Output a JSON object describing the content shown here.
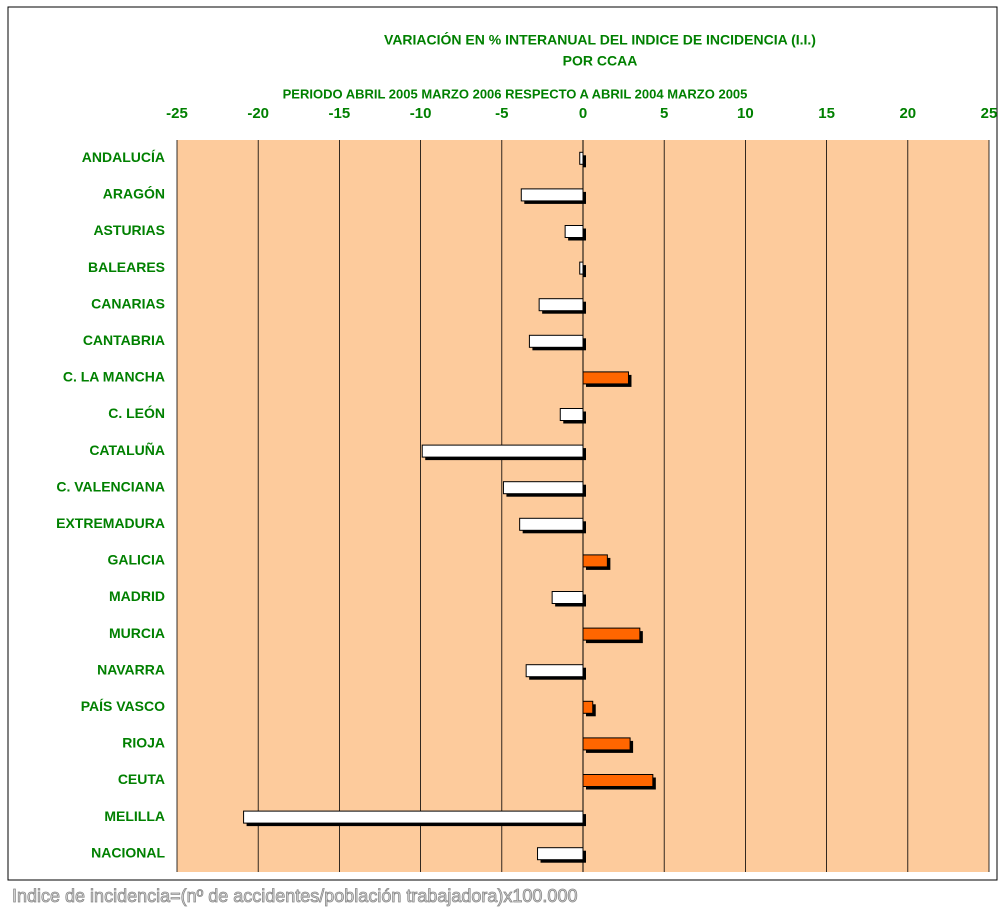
{
  "chart_data": {
    "type": "bar",
    "orientation": "horizontal",
    "title": [
      "VARIACIÓN  EN % INTERANUAL DEL INDICE DE INCIDENCIA  (I.I.)",
      "POR CCAA"
    ],
    "subtitle": "PERIODO ABRIL 2005 MARZO 2006  RESPECTO A ABRIL 2004 MARZO 2005",
    "footnote": "Indice de incidencia=(nº de accidentes/población trabajadora)x100.000",
    "categories": [
      "ANDALUCÍA",
      "ARAGÓN",
      "ASTURIAS",
      "BALEARES",
      "CANARIAS",
      "CANTABRIA",
      "C. LA MANCHA",
      "C. LEÓN",
      "CATALUÑA",
      "C. VALENCIANA",
      "EXTREMADURA",
      "GALICIA",
      "MADRID",
      "MURCIA",
      "NAVARRA",
      "PAÍS VASCO",
      "RIOJA",
      "CEUTA",
      "MELILLA",
      "NACIONAL"
    ],
    "values": [
      -0.2,
      -3.8,
      -1.1,
      -0.2,
      -2.7,
      -3.3,
      2.8,
      -1.4,
      -9.9,
      -4.9,
      -3.9,
      1.5,
      -1.9,
      3.5,
      -3.5,
      0.6,
      2.9,
      4.3,
      -20.9,
      -2.8
    ],
    "positive_color": "#ff6600",
    "negative_color": "#ffffff",
    "background_color": "#fdcb9c",
    "xlim": [
      -25,
      25
    ],
    "xticks": [
      -25,
      -20,
      -15,
      -10,
      -5,
      0,
      5,
      10,
      15,
      20,
      25
    ],
    "grid": true
  }
}
